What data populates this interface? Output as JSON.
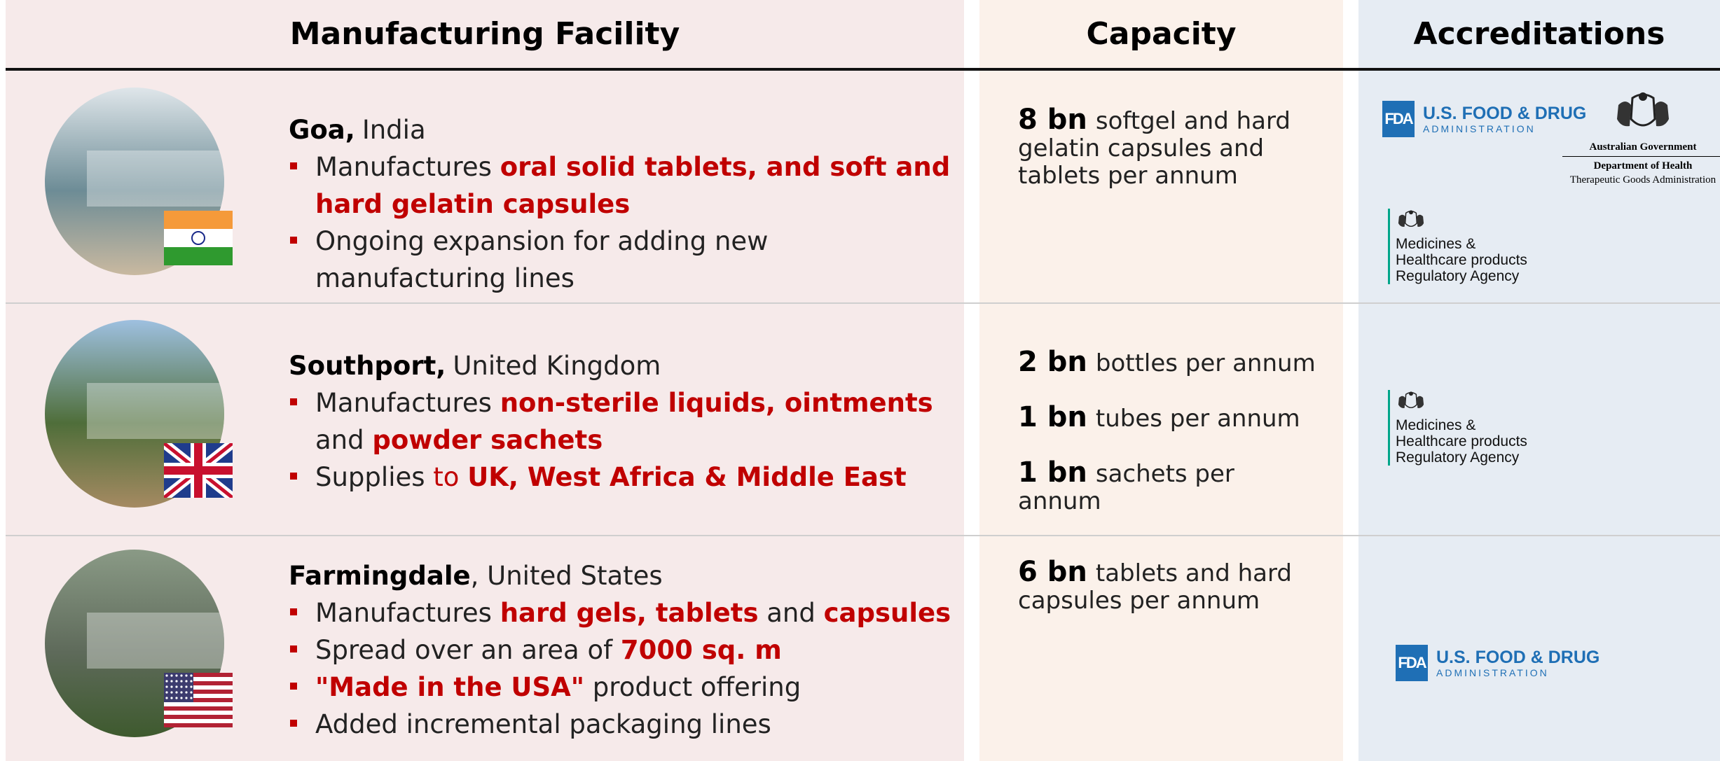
{
  "header": {
    "columns": [
      "Manufacturing Facility",
      "Capacity",
      "Accreditations"
    ]
  },
  "rows": [
    {
      "city": "Goa,",
      "country": "India",
      "bullets": [
        [
          {
            "text": "Manufactures "
          },
          {
            "text": "oral solid tablets, and soft and hard gelatin capsules",
            "em": "bold"
          }
        ],
        [
          {
            "text": "Ongoing expansion for adding new manufacturing lines"
          }
        ]
      ],
      "capacity": [
        {
          "amount": "8 bn",
          "text": "softgel and hard gelatin capsules and tablets per annum"
        }
      ],
      "flag": "india",
      "accreditations": [
        {
          "type": "fda",
          "mark": "FDA",
          "name": "U.S. FOOD & DRUG",
          "sub": "ADMINISTRATION"
        },
        {
          "type": "tga",
          "lines": [
            "Australian Government",
            "Department of Health",
            "Therapeutic Goods Administration"
          ]
        },
        {
          "type": "mhra",
          "lines": [
            "Medicines &",
            "Healthcare products",
            "Regulatory Agency"
          ]
        }
      ]
    },
    {
      "city": "Southport,",
      "country": "United Kingdom",
      "bullets": [
        [
          {
            "text": "Manufactures "
          },
          {
            "text": "non-sterile liquids, ointments",
            "em": "bold"
          },
          {
            "text": " and "
          },
          {
            "text": "powder sachets",
            "em": "bold"
          }
        ],
        [
          {
            "text": "Supplies "
          },
          {
            "text": "to ",
            "em": "red"
          },
          {
            "text": "UK, West Africa & Middle East",
            "em": "bold"
          }
        ]
      ],
      "capacity": [
        {
          "amount": "2 bn",
          "text": "bottles per annum"
        },
        {
          "amount": "1 bn",
          "text": "tubes per annum"
        },
        {
          "amount": "1 bn",
          "text": "sachets per annum"
        }
      ],
      "flag": "uk",
      "accreditations": [
        {
          "type": "mhra",
          "lines": [
            "Medicines &",
            "Healthcare products",
            "Regulatory Agency"
          ]
        }
      ]
    },
    {
      "city": "Farmingdale",
      "country": ", United States",
      "bullets": [
        [
          {
            "text": "Manufactures "
          },
          {
            "text": "hard gels, tablets",
            "em": "bold"
          },
          {
            "text": " and "
          },
          {
            "text": "capsules",
            "em": "bold"
          }
        ],
        [
          {
            "text": "Spread over an area of "
          },
          {
            "text": "7000 sq. m",
            "em": "bold"
          }
        ],
        [
          {
            "text": "\"Made in the USA\"",
            "em": "bold"
          },
          {
            "text": " product offering"
          }
        ],
        [
          {
            "text": "Added incremental packaging lines"
          }
        ]
      ],
      "capacity": [
        {
          "amount": "6 bn",
          "text": "tablets and hard capsules per annum"
        }
      ],
      "flag": "us",
      "accreditations": [
        {
          "type": "fda",
          "mark": "FDA",
          "name": "U.S. FOOD & DRUG",
          "sub": "ADMINISTRATION"
        }
      ]
    }
  ]
}
